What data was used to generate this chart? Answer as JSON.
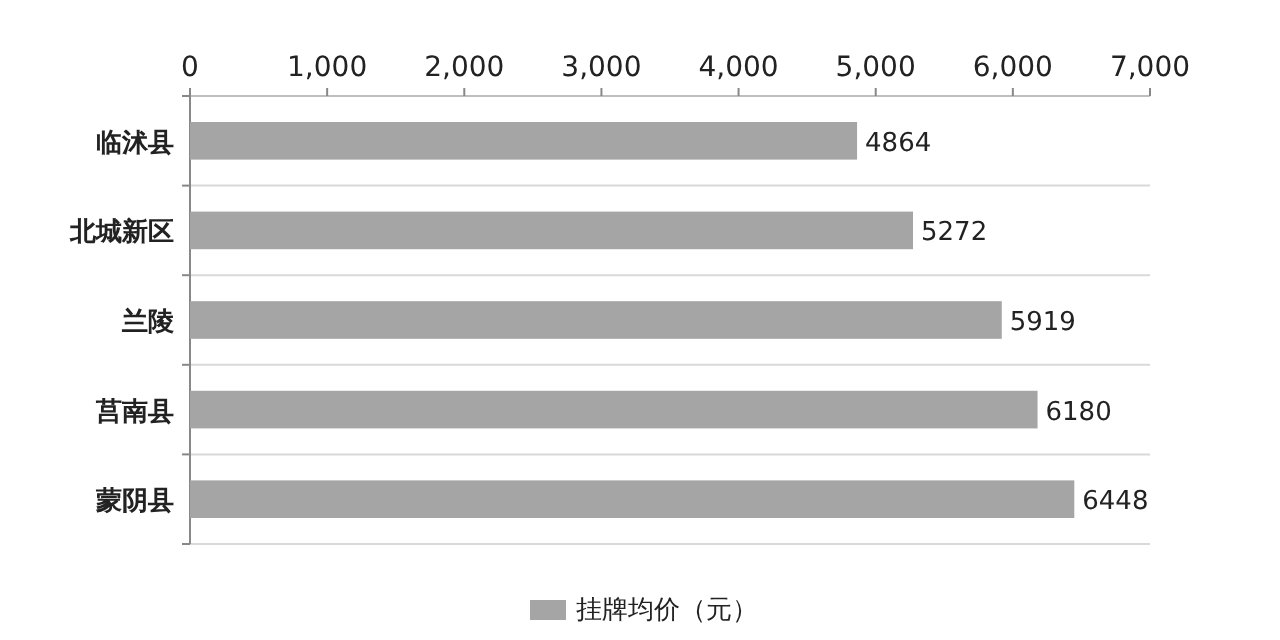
{
  "chart_data": {
    "type": "bar",
    "orientation": "horizontal",
    "categories": [
      "临沭县",
      "北城新区",
      "兰陵",
      "莒南县",
      "蒙阴县"
    ],
    "series": [
      {
        "name": "挂牌均价（元）",
        "color": "#a5a5a5",
        "values": [
          4864,
          5272,
          5919,
          6180,
          6448
        ]
      }
    ],
    "xlim": [
      0,
      7000
    ],
    "xticks": [
      {
        "value": 0,
        "label": "0"
      },
      {
        "value": 1000,
        "label": "1,000"
      },
      {
        "value": 2000,
        "label": "2,000"
      },
      {
        "value": 3000,
        "label": "3,000"
      },
      {
        "value": 4000,
        "label": "4,000"
      },
      {
        "value": 5000,
        "label": "5,000"
      },
      {
        "value": 6000,
        "label": "6,000"
      },
      {
        "value": 7000,
        "label": "7,000"
      }
    ],
    "data_labels": true,
    "grid": "y",
    "legend": "bottom"
  }
}
